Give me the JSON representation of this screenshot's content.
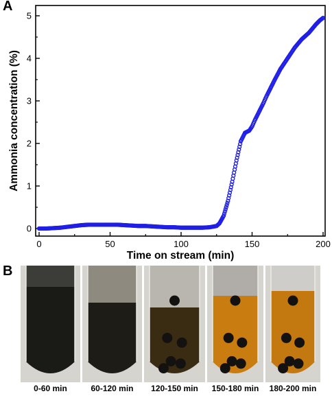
{
  "panel_labels": {
    "a": "A",
    "b": "B"
  },
  "chart_data": {
    "type": "scatter",
    "xlabel": "Time on stream (min)",
    "ylabel": "Ammonia concentration (%)",
    "xlim": [
      0,
      200
    ],
    "ylim": [
      0,
      5
    ],
    "xticks": [
      0,
      50,
      100,
      150,
      200
    ],
    "yticks": [
      0,
      1,
      2,
      3,
      4,
      5
    ],
    "grid": false,
    "marker_color": "#1f1fe6",
    "x": [
      0,
      5,
      10,
      15,
      20,
      25,
      30,
      35,
      40,
      45,
      50,
      55,
      60,
      65,
      70,
      75,
      80,
      85,
      90,
      95,
      100,
      105,
      110,
      115,
      120,
      125,
      127,
      130,
      133,
      136,
      139,
      142,
      145,
      148,
      150,
      152,
      155,
      158,
      160,
      163,
      166,
      170,
      175,
      180,
      185,
      190,
      195,
      198,
      200
    ],
    "y": [
      0.0,
      0.0,
      0.01,
      0.02,
      0.04,
      0.06,
      0.08,
      0.09,
      0.09,
      0.09,
      0.09,
      0.09,
      0.08,
      0.07,
      0.06,
      0.06,
      0.05,
      0.04,
      0.03,
      0.03,
      0.02,
      0.02,
      0.02,
      0.02,
      0.03,
      0.06,
      0.12,
      0.3,
      0.65,
      1.1,
      1.6,
      2.05,
      2.25,
      2.3,
      2.4,
      2.55,
      2.75,
      2.95,
      3.1,
      3.3,
      3.5,
      3.75,
      4.0,
      4.25,
      4.45,
      4.6,
      4.8,
      4.9,
      4.95
    ]
  },
  "photos": [
    {
      "caption": "0-60 min",
      "liquid": "#1a1a17",
      "headspace": "#3c3c38",
      "level": 0.18,
      "colorant": "dark"
    },
    {
      "caption": "60-120 min",
      "liquid": "#1e1c16",
      "headspace": "#8f8a80",
      "level": 0.32,
      "colorant": "dark"
    },
    {
      "caption": "120-150 min",
      "liquid": "#3a2c12",
      "headspace": "#b9b6b0",
      "level": 0.36,
      "colorant": "mixed"
    },
    {
      "caption": "150-180 min",
      "liquid": "#c97c0f",
      "headspace": "#b0ada8",
      "level": 0.26,
      "colorant": "amber"
    },
    {
      "caption": "180-200 min",
      "liquid": "#c47810",
      "headspace": "#cfcdca",
      "level": 0.22,
      "colorant": "amber"
    }
  ]
}
